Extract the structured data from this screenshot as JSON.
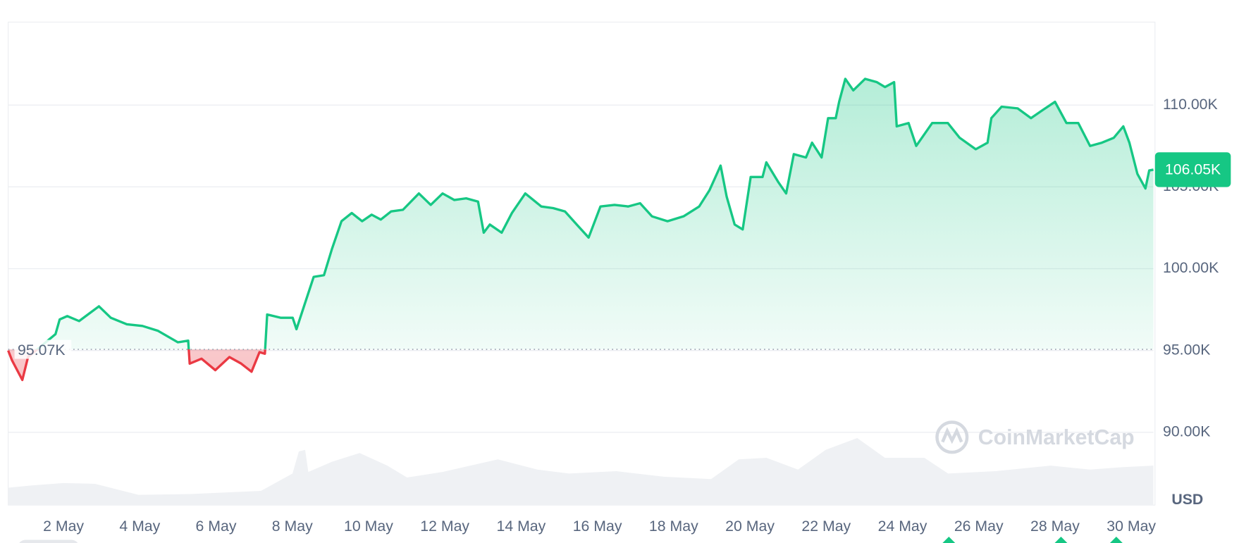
{
  "chart_data": {
    "type": "line",
    "x": [
      0.55,
      0.65,
      0.92,
      1.07,
      1.79,
      1.9,
      2.1,
      2.41,
      2.93,
      3.24,
      3.66,
      4.07,
      4.48,
      5.0,
      5.27,
      5.31,
      5.62,
      5.98,
      6.35,
      6.66,
      6.93,
      7.14,
      7.28,
      7.34,
      7.69,
      8.01,
      8.11,
      8.32,
      8.56,
      8.83,
      9.04,
      9.29,
      9.56,
      9.83,
      10.08,
      10.32,
      10.59,
      10.9,
      11.32,
      11.63,
      11.94,
      12.25,
      12.56,
      12.87,
      13.02,
      13.18,
      13.49,
      13.76,
      14.11,
      14.53,
      14.84,
      15.15,
      15.46,
      15.77,
      16.08,
      16.45,
      16.81,
      17.12,
      17.43,
      17.84,
      18.26,
      18.67,
      18.94,
      19.23,
      19.39,
      19.6,
      19.81,
      20.02,
      20.33,
      20.43,
      20.74,
      20.95,
      21.15,
      21.47,
      21.63,
      21.88,
      22.05,
      22.25,
      22.34,
      22.5,
      22.71,
      23.02,
      23.33,
      23.54,
      23.78,
      23.85,
      24.16,
      24.36,
      24.78,
      25.19,
      25.5,
      25.92,
      26.23,
      26.33,
      26.6,
      27.02,
      27.37,
      27.68,
      28.0,
      28.3,
      28.61,
      28.92,
      29.23,
      29.54,
      29.79,
      29.95,
      30.16,
      30.37,
      30.47,
      30.58
    ],
    "series": [
      {
        "color": "#16c784",
        "below_color": "#ea3943",
        "values": [
          95.0,
          94.4,
          93.2,
          94.6,
          96.0,
          96.9,
          97.1,
          96.8,
          97.7,
          97.0,
          96.6,
          96.5,
          96.2,
          95.5,
          95.6,
          94.2,
          94.5,
          93.8,
          94.6,
          94.2,
          93.7,
          94.9,
          94.8,
          97.2,
          97.0,
          97.0,
          96.3,
          97.8,
          99.5,
          99.6,
          101.2,
          102.9,
          103.4,
          102.9,
          103.3,
          103.0,
          103.5,
          103.6,
          104.6,
          103.9,
          104.6,
          104.2,
          104.3,
          104.1,
          102.2,
          102.7,
          102.2,
          103.4,
          104.6,
          103.8,
          103.7,
          103.5,
          102.7,
          101.9,
          103.8,
          103.9,
          103.8,
          104.0,
          103.2,
          102.9,
          103.2,
          103.8,
          104.8,
          106.3,
          104.4,
          102.7,
          102.4,
          105.6,
          105.6,
          106.5,
          105.3,
          104.6,
          107.0,
          106.8,
          107.7,
          106.8,
          109.2,
          109.2,
          110.2,
          111.6,
          110.9,
          111.6,
          111.4,
          111.1,
          111.4,
          108.7,
          108.9,
          107.5,
          108.9,
          108.9,
          108.0,
          107.3,
          107.7,
          109.2,
          109.9,
          109.8,
          109.2,
          109.7,
          110.2,
          108.9,
          108.9,
          107.5,
          107.7,
          108.0,
          108.7,
          107.7,
          105.8,
          104.9,
          106.0,
          106.05
        ]
      }
    ],
    "baseline": {
      "value": 95.07,
      "label": "95.07K"
    },
    "last_value": {
      "value": 106.05,
      "label": "106.05K"
    },
    "xlim": [
      0.55,
      30.58
    ],
    "xticks": [
      {
        "value": 2,
        "label": "2 May"
      },
      {
        "value": 4,
        "label": "4 May"
      },
      {
        "value": 6,
        "label": "6 May"
      },
      {
        "value": 8,
        "label": "8 May"
      },
      {
        "value": 10,
        "label": "10 May"
      },
      {
        "value": 12,
        "label": "12 May"
      },
      {
        "value": 14,
        "label": "14 May"
      },
      {
        "value": 16,
        "label": "16 May"
      },
      {
        "value": 18,
        "label": "18 May"
      },
      {
        "value": 20,
        "label": "20 May"
      },
      {
        "value": 22,
        "label": "22 May"
      },
      {
        "value": 24,
        "label": "24 May"
      },
      {
        "value": 26,
        "label": "26 May"
      },
      {
        "value": 28,
        "label": "28 May"
      },
      {
        "value": 30,
        "label": "30 May"
      }
    ],
    "ylim": [
      85.55,
      115.07
    ],
    "yticks": [
      {
        "value": 90,
        "label": "90.00K"
      },
      {
        "value": 95,
        "label": "95.00K"
      },
      {
        "value": 100,
        "label": "100.00K"
      },
      {
        "value": 105,
        "label": "105.00K"
      },
      {
        "value": 110,
        "label": "110.00K"
      }
    ],
    "grid": true,
    "unit": "USD",
    "watermark": "CoinMarketCap"
  }
}
